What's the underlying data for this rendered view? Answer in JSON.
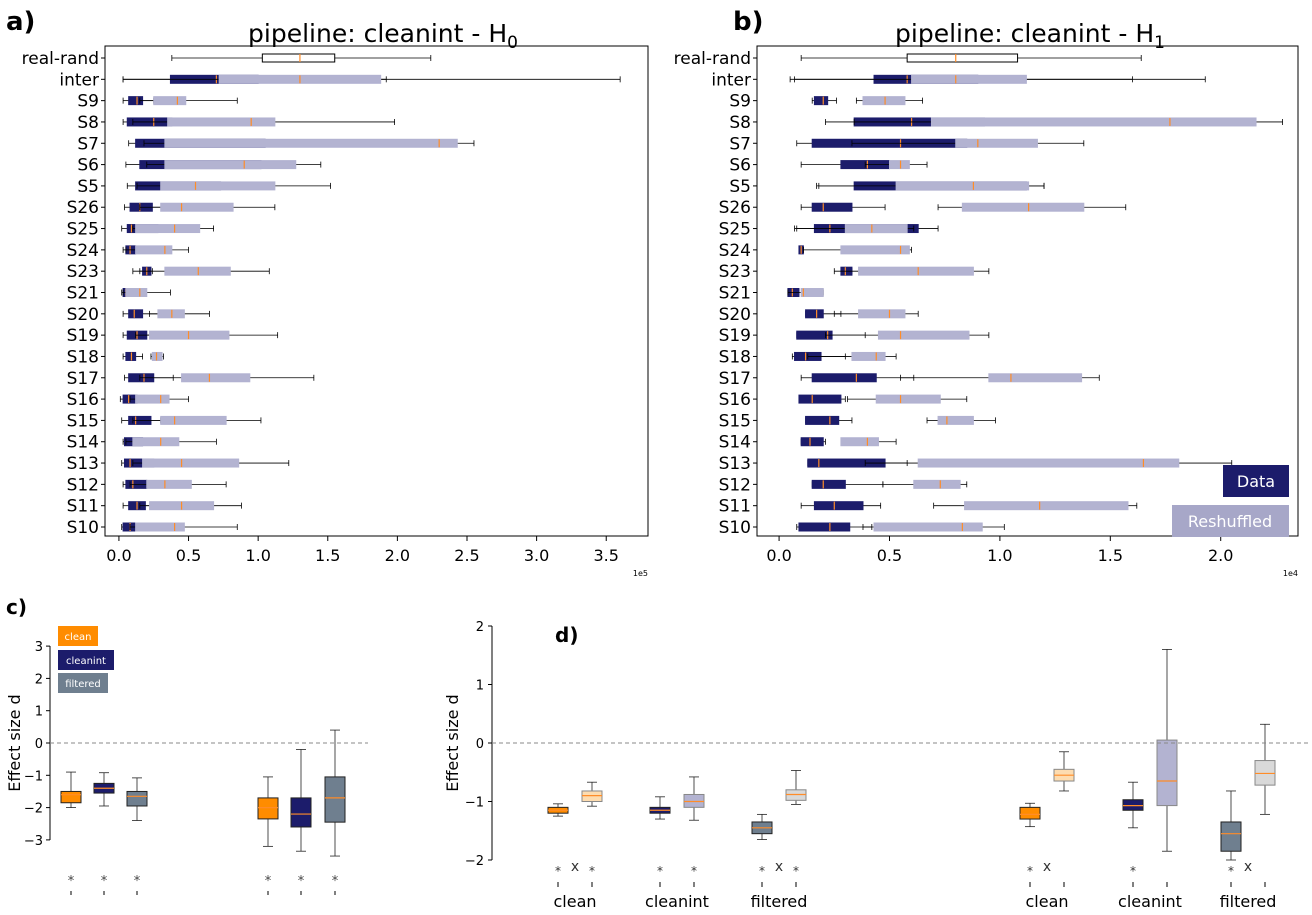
{
  "panels": [
    {
      "id": "a",
      "letter": "a)",
      "title": "pipeline: cleanint - H",
      "subscript": "0",
      "x_ticks": [
        "0.0",
        "0.5",
        "1.0",
        "1.5",
        "2.0",
        "2.5",
        "3.0",
        "3.5"
      ],
      "x_tick_values": [
        0,
        0.5,
        1.0,
        1.5,
        2.0,
        2.5,
        3.0,
        3.5
      ],
      "x_scale": "1e5"
    },
    {
      "id": "b",
      "letter": "b)",
      "title": "pipeline: cleanint - H",
      "subscript": "1",
      "x_ticks": [
        "0.0",
        "0.5",
        "1.0",
        "1.5",
        "2.0"
      ],
      "x_tick_values": [
        0,
        0.5,
        1.0,
        1.5,
        2.0
      ],
      "x_scale": "1e4"
    },
    {
      "id": "c",
      "letter": "c)",
      "ylabel": "Effect size d",
      "y_ticks": [
        "3",
        "2",
        "1",
        "0",
        "−1",
        "−2",
        "−3"
      ]
    },
    {
      "id": "d",
      "letter": "d)",
      "ylabel": "Effect size d",
      "y_ticks": [
        "2",
        "1",
        "0",
        "−1",
        "−2"
      ],
      "x_groups": [
        "clean",
        "cleanint",
        "filtered",
        "clean",
        "cleanint",
        "filtered"
      ]
    }
  ],
  "legend_ab": {
    "data": "Data",
    "reshuffled": "Reshuffled"
  },
  "legend_c": [
    "clean",
    "cleanint",
    "filtered"
  ],
  "colors": {
    "data": "#1c1c6b",
    "reshuffled": "#b3b3d1",
    "median": "#ff8c28",
    "clean": "#ff8c00",
    "cleanint": "#1c1c6b",
    "filtered": "#6f7f8f",
    "clean_light": "#fddcb0",
    "cleanint_light": "#b3b3d1",
    "filtered_light": "#d9d9d9"
  },
  "chart_data": [
    {
      "panel": "a",
      "type": "boxplot",
      "title": "pipeline: cleanint - H0",
      "orientation": "horizontal",
      "x_scale": "1e5",
      "xlim": [
        -0.1,
        3.8
      ],
      "categories": [
        "real-rand",
        "inter",
        "S9",
        "S8",
        "S7",
        "S6",
        "S5",
        "S26",
        "S25",
        "S24",
        "S23",
        "S21",
        "S20",
        "S19",
        "S18",
        "S17",
        "S16",
        "S15",
        "S14",
        "S13",
        "S12",
        "S11",
        "S10"
      ],
      "series": [
        {
          "name": "Data",
          "boxes": [
            [
              0.38,
              1.03,
              1.3,
              1.55,
              2.24
            ],
            [
              0.03,
              0.37,
              0.7,
              1.0,
              1.92
            ],
            [
              0.03,
              0.07,
              0.13,
              0.17,
              0.25
            ],
            [
              0.03,
              0.06,
              0.25,
              0.38,
              0.65
            ],
            [
              0.07,
              0.12,
              0.65,
              1.05,
              1.13
            ],
            [
              0.05,
              0.15,
              0.9,
              1.02,
              1.05
            ],
            [
              0.06,
              0.12,
              0.45,
              0.73,
              1.05
            ],
            [
              0.04,
              0.08,
              0.15,
              0.24,
              0.33
            ],
            [
              0.02,
              0.06,
              0.09,
              0.28,
              0.42
            ],
            [
              0.03,
              0.05,
              0.08,
              0.12,
              0.17
            ],
            [
              0.15,
              0.17,
              0.2,
              0.23,
              0.24
            ],
            [
              0.02,
              0.03,
              0.05,
              0.08,
              0.1
            ],
            [
              0.03,
              0.07,
              0.11,
              0.17,
              0.3
            ],
            [
              0.03,
              0.06,
              0.13,
              0.2,
              0.3
            ],
            [
              0.03,
              0.05,
              0.09,
              0.12,
              0.17
            ],
            [
              0.04,
              0.07,
              0.18,
              0.25,
              0.39
            ],
            [
              0.01,
              0.03,
              0.07,
              0.13,
              0.2
            ],
            [
              0.02,
              0.07,
              0.12,
              0.23,
              0.3
            ],
            [
              0.03,
              0.04,
              0.11,
              0.17,
              0.23
            ],
            [
              0.02,
              0.04,
              0.08,
              0.25,
              0.33
            ],
            [
              0.03,
              0.05,
              0.1,
              0.2,
              0.28
            ],
            [
              0.03,
              0.07,
              0.13,
              0.19,
              0.24
            ],
            [
              0.02,
              0.03,
              0.08,
              0.16,
              0.25
            ]
          ]
        },
        {
          "name": "Reshuffled",
          "boxes": [
            null,
            [
              0.03,
              0.72,
              1.3,
              1.88,
              3.6
            ],
            [
              0.15,
              0.25,
              0.42,
              0.48,
              0.85
            ],
            [
              0.1,
              0.35,
              0.95,
              1.12,
              1.98
            ],
            [
              0.18,
              0.33,
              2.3,
              2.43,
              2.55
            ],
            [
              0.2,
              0.33,
              0.9,
              1.27,
              1.45
            ],
            [
              0.13,
              0.3,
              0.55,
              1.12,
              1.52
            ],
            [
              0.15,
              0.3,
              0.45,
              0.82,
              1.12
            ],
            [
              0.1,
              0.12,
              0.4,
              0.58,
              0.68
            ],
            [
              0.05,
              0.12,
              0.33,
              0.38,
              0.5
            ],
            [
              0.1,
              0.33,
              0.57,
              0.8,
              1.08
            ],
            [
              0.03,
              0.05,
              0.15,
              0.2,
              0.37
            ],
            [
              0.22,
              0.28,
              0.38,
              0.47,
              0.65
            ],
            [
              0.12,
              0.22,
              0.5,
              0.79,
              1.14
            ],
            [
              0.23,
              0.24,
              0.27,
              0.31,
              0.32
            ],
            [
              0.15,
              0.45,
              0.65,
              0.94,
              1.4
            ],
            [
              0.08,
              0.12,
              0.3,
              0.36,
              0.5
            ],
            [
              0.1,
              0.3,
              0.4,
              0.77,
              1.02
            ],
            [
              0.05,
              0.1,
              0.3,
              0.43,
              0.7
            ],
            [
              0.1,
              0.17,
              0.45,
              0.86,
              1.22
            ],
            [
              0.08,
              0.2,
              0.33,
              0.52,
              0.77
            ],
            [
              0.15,
              0.22,
              0.45,
              0.68,
              0.88
            ],
            [
              0.08,
              0.12,
              0.4,
              0.47,
              0.85
            ]
          ]
        }
      ]
    },
    {
      "panel": "b",
      "type": "boxplot",
      "title": "pipeline: cleanint - H1",
      "orientation": "horizontal",
      "x_scale": "1e4",
      "xlim": [
        -0.1,
        2.35
      ],
      "categories": [
        "real-rand",
        "inter",
        "S9",
        "S8",
        "S7",
        "S6",
        "S5",
        "S26",
        "S25",
        "S24",
        "S23",
        "S21",
        "S20",
        "S19",
        "S18",
        "S17",
        "S16",
        "S15",
        "S14",
        "S13",
        "S12",
        "S11",
        "S10"
      ],
      "series": [
        {
          "name": "Data",
          "boxes": [
            [
              0.1,
              0.58,
              0.8,
              1.08,
              1.64
            ],
            [
              0.07,
              0.43,
              0.58,
              0.9,
              1.6
            ],
            [
              0.15,
              0.16,
              0.2,
              0.22,
              0.26
            ],
            [
              0.21,
              0.34,
              0.6,
              0.93,
              1.38
            ],
            [
              0.08,
              0.15,
              0.55,
              0.85,
              0.9
            ],
            [
              0.1,
              0.28,
              0.4,
              0.5,
              0.52
            ],
            [
              0.17,
              0.34,
              0.78,
              1.12,
              1.2
            ],
            [
              0.1,
              0.15,
              0.2,
              0.33,
              0.48
            ],
            [
              0.07,
              0.16,
              0.23,
              0.63,
              0.72
            ],
            [
              0.09,
              0.09,
              0.1,
              0.11,
              0.11
            ],
            [
              0.28,
              0.28,
              0.3,
              0.33,
              0.33
            ],
            [
              0.04,
              0.04,
              0.06,
              0.09,
              0.09
            ],
            [
              0.12,
              0.12,
              0.17,
              0.2,
              0.28
            ],
            [
              0.08,
              0.08,
              0.22,
              0.24,
              0.39
            ],
            [
              0.06,
              0.07,
              0.12,
              0.19,
              0.3
            ],
            [
              0.1,
              0.15,
              0.35,
              0.44,
              0.61
            ],
            [
              0.09,
              0.09,
              0.15,
              0.28,
              0.3
            ],
            [
              0.12,
              0.12,
              0.23,
              0.27,
              0.33
            ],
            [
              0.1,
              0.1,
              0.14,
              0.2,
              0.21
            ],
            [
              0.13,
              0.13,
              0.18,
              0.48,
              0.58
            ],
            [
              0.15,
              0.15,
              0.2,
              0.3,
              0.47
            ],
            [
              0.1,
              0.16,
              0.25,
              0.38,
              0.46
            ],
            [
              0.08,
              0.09,
              0.23,
              0.32,
              0.42
            ]
          ]
        },
        {
          "name": "Reshuffled",
          "boxes": [
            null,
            [
              0.05,
              0.6,
              0.8,
              1.12,
              1.93
            ],
            [
              0.35,
              0.38,
              0.48,
              0.57,
              0.65
            ],
            [
              0.34,
              0.69,
              1.77,
              2.16,
              2.28
            ],
            [
              0.33,
              0.8,
              0.9,
              1.17,
              1.38
            ],
            [
              0.39,
              0.5,
              0.55,
              0.59,
              0.67
            ],
            [
              0.18,
              0.53,
              0.88,
              1.13,
              1.2
            ],
            [
              0.72,
              0.83,
              1.13,
              1.38,
              1.57
            ],
            [
              0.08,
              0.3,
              0.42,
              0.58,
              0.61
            ],
            [
              0.11,
              0.28,
              0.55,
              0.59,
              0.6
            ],
            [
              0.25,
              0.36,
              0.63,
              0.88,
              0.95
            ],
            [
              0.04,
              0.1,
              0.11,
              0.2,
              0.2
            ],
            [
              0.25,
              0.36,
              0.5,
              0.57,
              0.63
            ],
            [
              0.21,
              0.45,
              0.55,
              0.86,
              0.95
            ],
            [
              0.13,
              0.33,
              0.44,
              0.48,
              0.53
            ],
            [
              0.55,
              0.95,
              1.05,
              1.37,
              1.45
            ],
            [
              0.31,
              0.44,
              0.55,
              0.73,
              0.85
            ],
            [
              0.67,
              0.72,
              0.76,
              0.88,
              0.98
            ],
            [
              0.28,
              0.28,
              0.4,
              0.45,
              0.53
            ],
            [
              0.39,
              0.63,
              1.65,
              1.81,
              2.05
            ],
            [
              0.47,
              0.61,
              0.73,
              0.82,
              0.85
            ],
            [
              0.7,
              0.84,
              1.18,
              1.58,
              1.62
            ],
            [
              0.38,
              0.43,
              0.83,
              0.92,
              1.02
            ]
          ]
        }
      ]
    },
    {
      "panel": "c",
      "type": "boxplot",
      "orientation": "vertical",
      "ylabel": "Effect size d",
      "ylim": [
        -3.4,
        3.4
      ],
      "reference_line": 0,
      "groups": [
        {
          "boxes": [
            {
              "series": "clean",
              "stats": [
                -2.0,
                -1.85,
                -1.6,
                -1.5,
                -0.9
              ],
              "marker": "*"
            },
            {
              "series": "cleanint",
              "stats": [
                -1.95,
                -1.55,
                -1.4,
                -1.25,
                -0.92
              ],
              "marker": "*"
            },
            {
              "series": "filtered",
              "stats": [
                -2.4,
                -1.95,
                -1.65,
                -1.5,
                -1.08
              ],
              "marker": "*"
            }
          ]
        },
        {
          "boxes": [
            {
              "series": "clean",
              "stats": [
                -3.2,
                -2.35,
                -2.0,
                -1.7,
                -1.05
              ],
              "marker": "*"
            },
            {
              "series": "cleanint",
              "stats": [
                -3.35,
                -2.6,
                -2.2,
                -1.7,
                -0.2
              ],
              "marker": "*"
            },
            {
              "series": "filtered",
              "stats": [
                -3.5,
                -2.45,
                -1.7,
                -1.05,
                0.4
              ],
              "marker": "*"
            }
          ]
        }
      ]
    },
    {
      "panel": "d",
      "type": "boxplot",
      "orientation": "vertical",
      "ylabel": "Effect size d",
      "ylim": [
        -2.05,
        2.05
      ],
      "reference_line": 0,
      "categories": [
        "clean",
        "cleanint",
        "filtered",
        "clean",
        "cleanint",
        "filtered"
      ],
      "groups": [
        {
          "label": "clean",
          "data": [
            -1.25,
            -1.2,
            -1.15,
            -1.1,
            -1.04
          ],
          "shuffled": [
            -1.08,
            -1.0,
            -0.9,
            -0.82,
            -0.67
          ],
          "markers": [
            "*",
            "x",
            "*"
          ]
        },
        {
          "label": "cleanint",
          "data": [
            -1.3,
            -1.2,
            -1.15,
            -1.1,
            -0.92
          ],
          "shuffled": [
            -1.32,
            -1.1,
            -1.0,
            -0.88,
            -0.58
          ],
          "markers": [
            "*",
            "",
            "*"
          ]
        },
        {
          "label": "filtered",
          "data": [
            -1.65,
            -1.55,
            -1.45,
            -1.35,
            -1.22
          ],
          "shuffled": [
            -1.05,
            -0.98,
            -0.88,
            -0.8,
            -0.47
          ],
          "markers": [
            "*",
            "x",
            "*"
          ]
        },
        {
          "label": "clean",
          "data": [
            -1.43,
            -1.3,
            -1.22,
            -1.1,
            -1.03
          ],
          "shuffled": [
            -0.82,
            -0.65,
            -0.55,
            -0.45,
            -0.15
          ],
          "markers": [
            "*",
            "x",
            ""
          ]
        },
        {
          "label": "cleanint",
          "data": [
            -1.45,
            -1.15,
            -1.07,
            -0.97,
            -0.67
          ],
          "shuffled": [
            -1.85,
            -1.07,
            -0.65,
            0.05,
            1.6
          ],
          "markers": [
            "*",
            "",
            ""
          ]
        },
        {
          "label": "filtered",
          "data": [
            -2.0,
            -1.85,
            -1.55,
            -1.35,
            -0.82
          ],
          "shuffled": [
            -1.22,
            -0.72,
            -0.52,
            -0.3,
            0.32
          ],
          "markers": [
            "*",
            "x",
            ""
          ]
        }
      ]
    }
  ]
}
